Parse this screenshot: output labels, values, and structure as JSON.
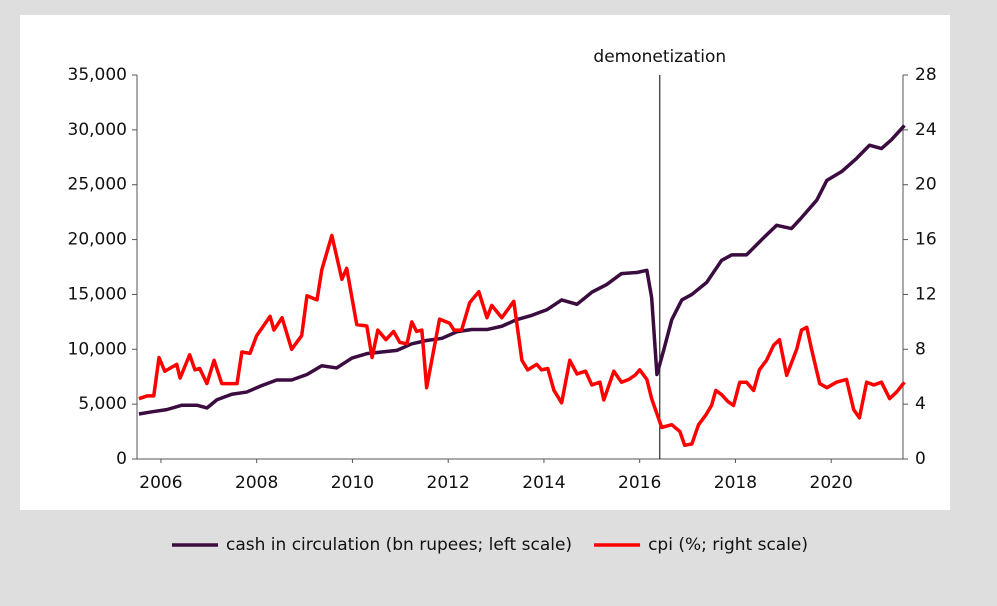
{
  "chart_data": {
    "type": "line",
    "xlim": [
      2006,
      2022
    ],
    "xticks": [
      {
        "value": 2006.5,
        "label": "2006"
      },
      {
        "value": 2008.5,
        "label": "2008"
      },
      {
        "value": 2010.5,
        "label": "2010"
      },
      {
        "value": 2012.5,
        "label": "2012"
      },
      {
        "value": 2014.5,
        "label": "2014"
      },
      {
        "value": 2016.5,
        "label": "2016"
      },
      {
        "value": 2018.5,
        "label": "2018"
      },
      {
        "value": 2020.5,
        "label": "2020"
      }
    ],
    "ylim": [
      0,
      35000
    ],
    "yticks": [
      0,
      {
        "value": 5000,
        "label": "5,000"
      },
      {
        "value": 10000,
        "label": "10,000"
      },
      {
        "value": 15000,
        "label": "15,000"
      },
      {
        "value": 20000,
        "label": "20,000"
      },
      {
        "value": 25000,
        "label": "25,000"
      },
      {
        "value": 30000,
        "label": "30,000"
      },
      {
        "value": 35000,
        "label": "35,000"
      }
    ],
    "y2lim": [
      0,
      28
    ],
    "y2ticks": [
      0,
      4,
      8,
      12,
      16,
      20,
      24,
      28
    ],
    "legend": "bottom",
    "annotations": [
      {
        "text": "demonetization",
        "x": 2016.92
      }
    ],
    "series": [
      {
        "name": "cash in circulation (bn rupees; left scale)",
        "color": "#3b0c3f",
        "x": [
          2006.04,
          2006.31,
          2006.62,
          2006.94,
          2007.25,
          2007.46,
          2007.67,
          2007.98,
          2008.29,
          2008.61,
          2008.92,
          2009.23,
          2009.55,
          2009.86,
          2010.17,
          2010.49,
          2010.8,
          2011.11,
          2011.43,
          2011.74,
          2012.05,
          2012.37,
          2012.68,
          2012.99,
          2013.31,
          2013.62,
          2013.93,
          2014.25,
          2014.56,
          2014.87,
          2015.19,
          2015.5,
          2015.81,
          2016.12,
          2016.44,
          2016.65,
          2016.75,
          2016.86,
          2017.0,
          2017.17,
          2017.38,
          2017.59,
          2017.9,
          2018.21,
          2018.42,
          2018.73,
          2019.05,
          2019.36,
          2019.67,
          2019.88,
          2020.2,
          2020.41,
          2020.72,
          2021.03,
          2021.3,
          2021.55,
          2021.76,
          2022.03
        ],
        "values": [
          4100,
          4300,
          4500,
          4900,
          4900,
          4650,
          5400,
          5900,
          6100,
          6700,
          7200,
          7200,
          7700,
          8500,
          8300,
          9200,
          9600,
          9750,
          9900,
          10500,
          10800,
          11000,
          11600,
          11800,
          11800,
          12100,
          12700,
          13100,
          13600,
          14500,
          14100,
          15200,
          15900,
          16900,
          17000,
          17200,
          14700,
          7700,
          9900,
          12700,
          14500,
          15000,
          16100,
          18100,
          18600,
          18600,
          20000,
          21300,
          21000,
          22000,
          23600,
          25400,
          26200,
          27400,
          28600,
          28300,
          29100,
          30400
        ]
      },
      {
        "name": "cpi (%; right scale)",
        "color": "#ff0000",
        "axis": "y2",
        "x": [
          2006.04,
          2006.21,
          2006.35,
          2006.46,
          2006.58,
          2006.83,
          2006.9,
          2007.1,
          2007.21,
          2007.31,
          2007.46,
          2007.61,
          2007.77,
          2008.09,
          2008.19,
          2008.36,
          2008.5,
          2008.78,
          2008.86,
          2009.03,
          2009.23,
          2009.44,
          2009.55,
          2009.76,
          2009.86,
          2010.07,
          2010.28,
          2010.38,
          2010.59,
          2010.8,
          2010.91,
          2011.03,
          2011.2,
          2011.36,
          2011.49,
          2011.64,
          2011.74,
          2011.84,
          2011.95,
          2012.05,
          2012.2,
          2012.32,
          2012.53,
          2012.62,
          2012.78,
          2012.95,
          2013.14,
          2013.31,
          2013.41,
          2013.62,
          2013.87,
          2014.04,
          2014.16,
          2014.35,
          2014.45,
          2014.58,
          2014.71,
          2014.87,
          2015.04,
          2015.19,
          2015.37,
          2015.5,
          2015.67,
          2015.75,
          2015.96,
          2016.12,
          2016.27,
          2016.4,
          2016.5,
          2016.65,
          2016.75,
          2016.96,
          2017.17,
          2017.34,
          2017.44,
          2017.59,
          2017.73,
          2017.88,
          2018.0,
          2018.09,
          2018.21,
          2018.34,
          2018.46,
          2018.59,
          2018.73,
          2018.88,
          2019.0,
          2019.15,
          2019.3,
          2019.42,
          2019.57,
          2019.78,
          2019.88,
          2019.99,
          2020.09,
          2020.26,
          2020.41,
          2020.61,
          2020.82,
          2020.97,
          2021.09,
          2021.24,
          2021.39,
          2021.55,
          2021.72,
          2021.87,
          2022.03
        ],
        "values": [
          4.4,
          4.6,
          4.6,
          7.4,
          6.4,
          6.9,
          5.9,
          7.6,
          6.5,
          6.6,
          5.5,
          7.2,
          5.5,
          5.5,
          7.8,
          7.7,
          9.0,
          10.4,
          9.4,
          10.3,
          8.0,
          9.0,
          11.9,
          11.6,
          13.8,
          16.3,
          13.1,
          13.9,
          9.8,
          9.7,
          7.4,
          9.4,
          8.7,
          9.3,
          8.5,
          8.4,
          10.0,
          9.3,
          9.4,
          5.2,
          8.0,
          10.2,
          9.9,
          9.4,
          9.4,
          11.4,
          12.2,
          10.3,
          11.2,
          10.3,
          11.5,
          7.2,
          6.5,
          6.9,
          6.5,
          6.6,
          5.0,
          4.1,
          7.2,
          6.2,
          6.4,
          5.4,
          5.6,
          4.3,
          6.4,
          5.6,
          5.8,
          6.1,
          6.5,
          5.8,
          4.4,
          2.3,
          2.5,
          2.0,
          1.0,
          1.1,
          2.5,
          3.2,
          3.9,
          5.0,
          4.7,
          4.2,
          3.9,
          5.6,
          5.6,
          5.0,
          6.5,
          7.2,
          8.3,
          8.7,
          6.1,
          8.0,
          9.4,
          9.6,
          8.0,
          5.5,
          5.2,
          5.6,
          5.8,
          3.6,
          3.0,
          5.6,
          5.4,
          5.6,
          4.4,
          4.9,
          5.6
        ]
      }
    ]
  }
}
